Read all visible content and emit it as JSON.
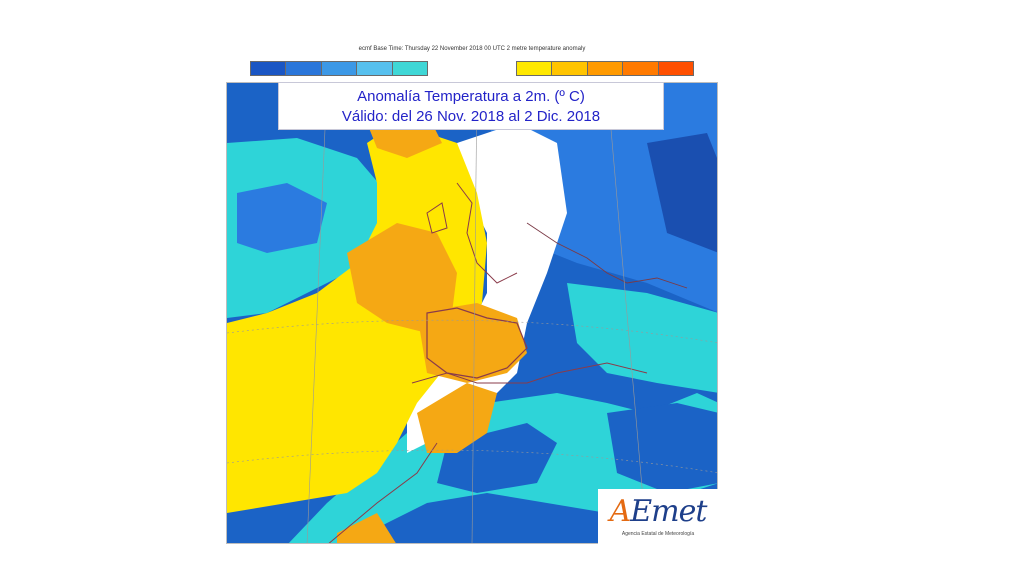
{
  "header": {
    "caption": "ecmf  Base Time: Thursday 22 November 2018 00 UTC 2 metre temperature anomaly"
  },
  "legend": {
    "cold_colors": [
      "#1a56c4",
      "#2a76da",
      "#3c98e6",
      "#57c0ee",
      "#3fd7d6"
    ],
    "warm_colors": [
      "#ffe800",
      "#ffc400",
      "#ff9a00",
      "#ff7a00",
      "#ff4f00"
    ]
  },
  "title": {
    "line1": "Anomalía Temperatura a 2m. (º C)",
    "line2": "Válido: del 26 Nov. 2018 al 2 Dic. 2018"
  },
  "logo": {
    "mark_first": "A",
    "mark_rest": "Emet",
    "subtitle": "Agencia Estatal de Meteorología"
  },
  "colors": {
    "deep_blue": "#1b63c6",
    "mid_blue": "#2b7be0",
    "cyan": "#2ed4d8",
    "pale": "#ffffff",
    "yellow": "#ffe600",
    "orange": "#f5a814",
    "border_line": "#8a3b4a"
  }
}
